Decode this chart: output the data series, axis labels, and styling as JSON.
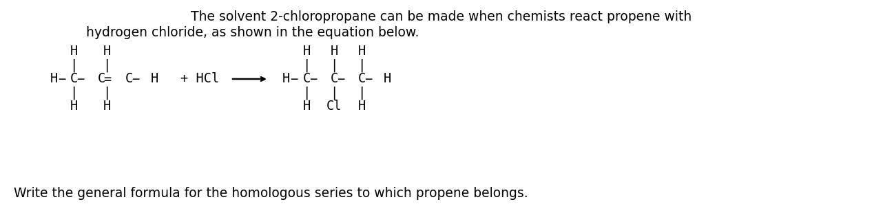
{
  "title_line1": "The solvent 2-chloropropane can be made when chemists react propene with",
  "title_line2": "hydrogen chloride, as shown in the equation below.",
  "footer": "Write the general formula for the homologous series to which propene belongs.",
  "bg_color": "#ffffff",
  "text_color": "#000000",
  "font_size_title": 13.5,
  "font_size_struct": 13.5,
  "font_size_footer": 13.5,
  "font_family": "DejaVu Sans"
}
